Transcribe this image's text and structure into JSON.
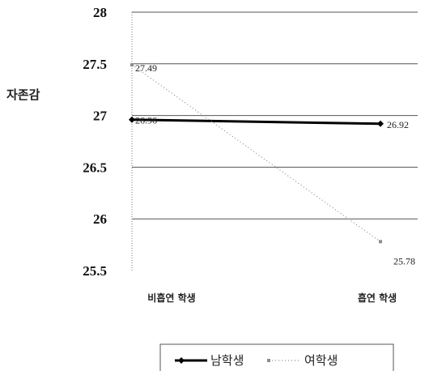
{
  "chart_data": {
    "type": "line",
    "ylabel": "자존감",
    "categories": [
      "비흡연 학생",
      "흡연 학생"
    ],
    "ylim": [
      25.5,
      28
    ],
    "yticks": [
      28,
      27.5,
      27,
      26.5,
      26,
      25.5
    ],
    "series": [
      {
        "name": "남학생",
        "values": [
          26.96,
          26.92
        ],
        "color": "#000000",
        "style": "solid",
        "marker": "diamond"
      },
      {
        "name": "여학생",
        "values": [
          27.49,
          25.78
        ],
        "color": "#8c8c8c",
        "style": "dotted",
        "marker": "square"
      }
    ],
    "grid": true,
    "legend": "bottom"
  }
}
